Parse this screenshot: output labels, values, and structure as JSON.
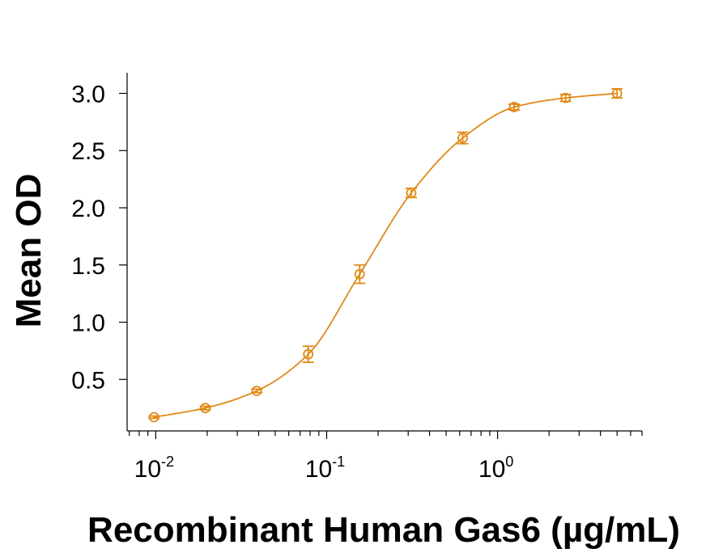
{
  "chart_data": {
    "type": "scatter",
    "title": "",
    "xlabel": "Recombinant Human Gas6 (µg/mL)",
    "ylabel": "Mean OD",
    "x_scale": "log",
    "xlim": [
      0.0068,
      7.0
    ],
    "ylim": [
      0.05,
      3.18
    ],
    "x_ticks": [
      {
        "value": 0.01,
        "base": "10",
        "exp": "-2"
      },
      {
        "value": 0.1,
        "base": "10",
        "exp": "-1"
      },
      {
        "value": 1,
        "base": "10",
        "exp": "0"
      }
    ],
    "y_ticks": [
      {
        "value": 0.5,
        "label": "0.5"
      },
      {
        "value": 1.0,
        "label": "1.0"
      },
      {
        "value": 1.5,
        "label": "1.5"
      },
      {
        "value": 2.0,
        "label": "2.0"
      },
      {
        "value": 2.5,
        "label": "2.5"
      },
      {
        "value": 3.0,
        "label": "3.0"
      }
    ],
    "grid": false,
    "legend": "none",
    "series": [
      {
        "color": "#E08A17",
        "marker": "open-circle",
        "fit": "4-parameter-logistic-curve",
        "points": [
          {
            "x": 0.00977,
            "y": 0.17,
            "err": 0.01
          },
          {
            "x": 0.0195,
            "y": 0.25,
            "err": 0.015
          },
          {
            "x": 0.039,
            "y": 0.4,
            "err": 0.015
          },
          {
            "x": 0.078,
            "y": 0.72,
            "err": 0.07
          },
          {
            "x": 0.156,
            "y": 1.42,
            "err": 0.08
          },
          {
            "x": 0.3125,
            "y": 2.13,
            "err": 0.04
          },
          {
            "x": 0.625,
            "y": 2.61,
            "err": 0.05
          },
          {
            "x": 1.25,
            "y": 2.88,
            "err": 0.025
          },
          {
            "x": 2.5,
            "y": 2.96,
            "err": 0.03
          },
          {
            "x": 5.0,
            "y": 3.0,
            "err": 0.04
          }
        ]
      }
    ]
  }
}
